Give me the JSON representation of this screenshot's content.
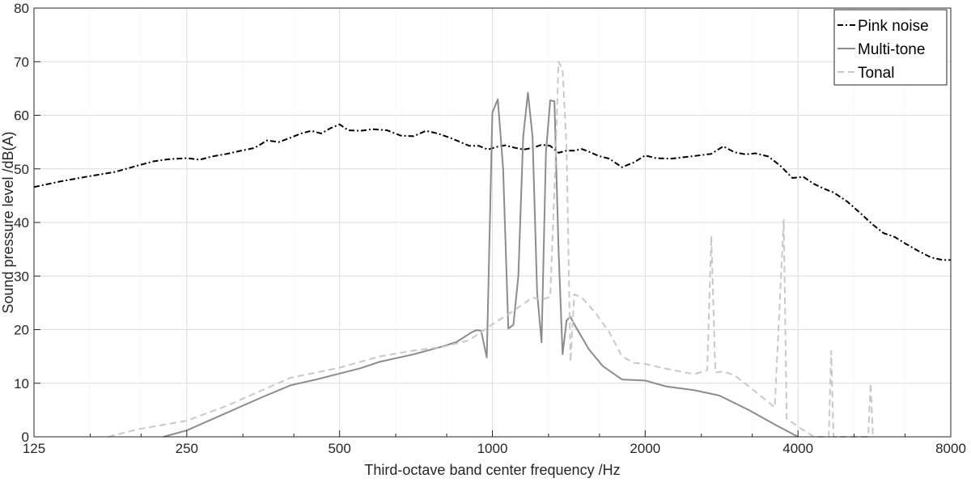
{
  "chart_data": {
    "type": "line",
    "xlabel": "Third-octave band center frequency /Hz",
    "ylabel": "Sound pressure level /dB(A)",
    "xscale": "log2",
    "xlim": [
      125,
      8000
    ],
    "ylim": [
      0,
      80
    ],
    "grid": true,
    "legend_position": "top-right",
    "x_ticks": [
      125,
      250,
      500,
      1000,
      2000,
      4000,
      8000
    ],
    "x_tick_labels": [
      "125",
      "250",
      "500",
      "1000",
      "2000",
      "4000",
      "8000"
    ],
    "y_ticks": [
      0,
      10,
      20,
      30,
      40,
      50,
      60,
      70,
      80
    ],
    "y_tick_labels": [
      "0",
      "10",
      "20",
      "30",
      "40",
      "50",
      "60",
      "70",
      "80"
    ],
    "series": [
      {
        "name": "Pink noise",
        "color": "#000000",
        "dash": "dashdot",
        "points": [
          [
            125,
            46.6
          ],
          [
            140,
            47.6
          ],
          [
            160,
            48.6
          ],
          [
            180,
            49.4
          ],
          [
            200,
            50.6
          ],
          [
            215,
            51.4
          ],
          [
            230,
            51.8
          ],
          [
            250,
            52.0
          ],
          [
            265,
            51.7
          ],
          [
            280,
            52.3
          ],
          [
            300,
            52.8
          ],
          [
            320,
            53.4
          ],
          [
            340,
            53.9
          ],
          [
            360,
            55.3
          ],
          [
            380,
            55.0
          ],
          [
            400,
            55.8
          ],
          [
            420,
            56.6
          ],
          [
            440,
            57.1
          ],
          [
            460,
            56.6
          ],
          [
            480,
            57.6
          ],
          [
            500,
            58.3
          ],
          [
            520,
            57.2
          ],
          [
            550,
            57.1
          ],
          [
            580,
            57.4
          ],
          [
            620,
            57.2
          ],
          [
            660,
            56.2
          ],
          [
            700,
            56.1
          ],
          [
            740,
            57.1
          ],
          [
            780,
            56.6
          ],
          [
            820,
            55.9
          ],
          [
            860,
            55.1
          ],
          [
            900,
            54.3
          ],
          [
            940,
            54.3
          ],
          [
            980,
            53.6
          ],
          [
            1020,
            54.1
          ],
          [
            1060,
            54.4
          ],
          [
            1100,
            54.0
          ],
          [
            1150,
            53.6
          ],
          [
            1200,
            53.9
          ],
          [
            1250,
            54.5
          ],
          [
            1300,
            54.3
          ],
          [
            1350,
            53.0
          ],
          [
            1400,
            53.4
          ],
          [
            1450,
            53.4
          ],
          [
            1500,
            53.7
          ],
          [
            1550,
            53.2
          ],
          [
            1620,
            52.4
          ],
          [
            1700,
            51.9
          ],
          [
            1800,
            50.3
          ],
          [
            1900,
            51.2
          ],
          [
            2000,
            52.5
          ],
          [
            2100,
            52.0
          ],
          [
            2250,
            51.9
          ],
          [
            2400,
            52.2
          ],
          [
            2550,
            52.5
          ],
          [
            2700,
            52.8
          ],
          [
            2850,
            54.2
          ],
          [
            3000,
            53.1
          ],
          [
            3150,
            52.7
          ],
          [
            3300,
            52.9
          ],
          [
            3500,
            52.3
          ],
          [
            3700,
            50.5
          ],
          [
            3900,
            48.3
          ],
          [
            4100,
            48.5
          ],
          [
            4300,
            47.2
          ],
          [
            4500,
            46.3
          ],
          [
            4700,
            45.6
          ],
          [
            5000,
            43.9
          ],
          [
            5300,
            41.8
          ],
          [
            5600,
            39.7
          ],
          [
            5900,
            38.0
          ],
          [
            6200,
            37.3
          ],
          [
            6500,
            36.1
          ],
          [
            6900,
            34.7
          ],
          [
            7300,
            33.5
          ],
          [
            7700,
            33.0
          ],
          [
            8000,
            33.0
          ]
        ]
      },
      {
        "name": "Multi-tone",
        "color": "#8c8c8c",
        "dash": "solid",
        "points": [
          [
            225,
            0.0
          ],
          [
            250,
            1.2
          ],
          [
            300,
            4.5
          ],
          [
            350,
            7.3
          ],
          [
            400,
            9.6
          ],
          [
            450,
            10.7
          ],
          [
            500,
            11.8
          ],
          [
            550,
            12.8
          ],
          [
            600,
            14.0
          ],
          [
            700,
            15.4
          ],
          [
            800,
            16.9
          ],
          [
            850,
            17.7
          ],
          [
            880,
            18.6
          ],
          [
            910,
            19.5
          ],
          [
            930,
            19.9
          ],
          [
            950,
            19.8
          ],
          [
            975,
            14.8
          ],
          [
            1000,
            60.5
          ],
          [
            1025,
            63.0
          ],
          [
            1050,
            50.0
          ],
          [
            1075,
            20.2
          ],
          [
            1100,
            20.9
          ],
          [
            1125,
            30.0
          ],
          [
            1150,
            56.0
          ],
          [
            1175,
            64.2
          ],
          [
            1200,
            56.0
          ],
          [
            1225,
            27.0
          ],
          [
            1250,
            17.6
          ],
          [
            1275,
            53.0
          ],
          [
            1300,
            62.8
          ],
          [
            1325,
            62.6
          ],
          [
            1350,
            35.0
          ],
          [
            1375,
            15.4
          ],
          [
            1400,
            21.7
          ],
          [
            1425,
            22.4
          ],
          [
            1460,
            20.5
          ],
          [
            1550,
            16.3
          ],
          [
            1650,
            13.2
          ],
          [
            1800,
            10.7
          ],
          [
            2000,
            10.5
          ],
          [
            2200,
            9.4
          ],
          [
            2500,
            8.7
          ],
          [
            2800,
            7.7
          ],
          [
            3200,
            5.0
          ],
          [
            3600,
            2.3
          ],
          [
            4000,
            0.0
          ]
        ]
      },
      {
        "name": "Tonal",
        "color": "#c8c8c8",
        "dash": "dashed",
        "points": [
          [
            175,
            0.0
          ],
          [
            200,
            1.4
          ],
          [
            250,
            3.0
          ],
          [
            300,
            5.8
          ],
          [
            350,
            8.6
          ],
          [
            400,
            11.0
          ],
          [
            500,
            12.9
          ],
          [
            600,
            15.0
          ],
          [
            700,
            16.1
          ],
          [
            800,
            16.8
          ],
          [
            900,
            18.0
          ],
          [
            1000,
            21.0
          ],
          [
            1100,
            23.5
          ],
          [
            1200,
            26.0
          ],
          [
            1250,
            25.6
          ],
          [
            1300,
            26.1
          ],
          [
            1330,
            50.0
          ],
          [
            1350,
            70.0
          ],
          [
            1375,
            68.5
          ],
          [
            1400,
            54.0
          ],
          [
            1425,
            14.0
          ],
          [
            1450,
            26.6
          ],
          [
            1500,
            26.0
          ],
          [
            1600,
            23.0
          ],
          [
            1700,
            19.5
          ],
          [
            1800,
            15.0
          ],
          [
            1900,
            13.8
          ],
          [
            2000,
            13.6
          ],
          [
            2200,
            12.7
          ],
          [
            2500,
            11.7
          ],
          [
            2650,
            12.4
          ],
          [
            2700,
            37.5
          ],
          [
            2750,
            12.0
          ],
          [
            2850,
            12.2
          ],
          [
            3000,
            11.5
          ],
          [
            3300,
            8.4
          ],
          [
            3600,
            5.5
          ],
          [
            3750,
            40.5
          ],
          [
            3800,
            3.4
          ],
          [
            4000,
            1.9
          ],
          [
            4300,
            0.0
          ],
          [
            4600,
            0.0
          ],
          [
            4650,
            16.0
          ],
          [
            4700,
            0.0
          ],
          [
            5500,
            0.0
          ],
          [
            5560,
            10.0
          ],
          [
            5620,
            0.0
          ]
        ]
      }
    ]
  }
}
